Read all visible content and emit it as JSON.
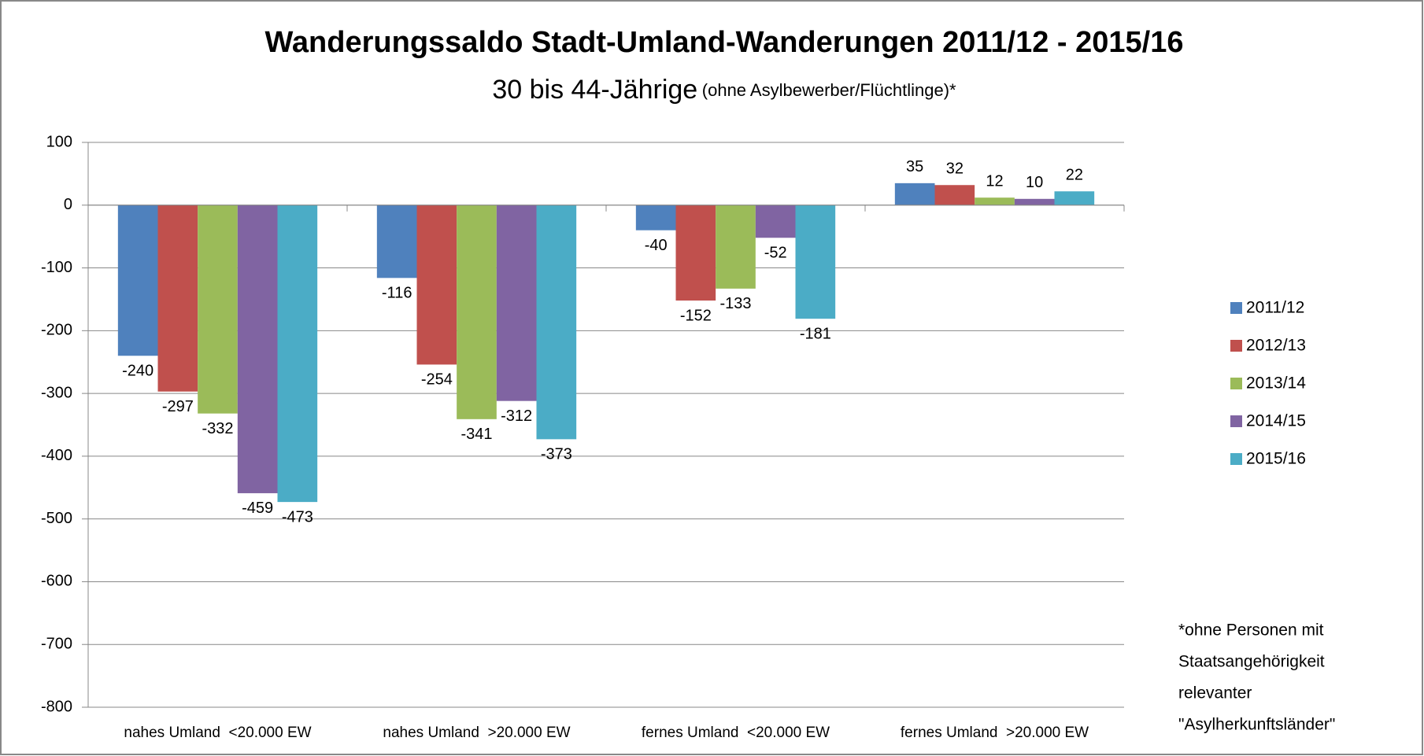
{
  "chart_data": {
    "type": "bar",
    "title": "Wanderungssaldo Stadt-Umland-Wanderungen 2011/12 - 2015/16",
    "subtitle": "30 bis 44-Jährige",
    "subtitle_note": "(ohne Asylbewerber/Flüchtlinge)*",
    "categories": [
      "nahes Umland  <20.000 EW",
      "nahes Umland  >20.000 EW",
      "fernes Umland  <20.000 EW",
      "fernes Umland  >20.000 EW"
    ],
    "series": [
      {
        "name": "2011/12",
        "color": "#4f81bd",
        "values": [
          -240,
          -116,
          -40,
          35
        ]
      },
      {
        "name": "2012/13",
        "color": "#c0504d",
        "values": [
          -297,
          -254,
          -152,
          32
        ]
      },
      {
        "name": "2013/14",
        "color": "#9bbb59",
        "values": [
          -332,
          -341,
          -133,
          12
        ]
      },
      {
        "name": "2014/15",
        "color": "#8064a2",
        "values": [
          -459,
          -312,
          -52,
          10
        ]
      },
      {
        "name": "2015/16",
        "color": "#4bacc6",
        "values": [
          -473,
          -373,
          -181,
          22
        ]
      }
    ],
    "ylim": [
      -800,
      100
    ],
    "yticks": [
      -800,
      -700,
      -600,
      -500,
      -400,
      -300,
      -200,
      -100,
      0,
      100
    ],
    "grid": true,
    "legend": "right",
    "footnote": [
      "*ohne Personen mit",
      "Staatsangehörigkeit",
      "relevanter",
      "\"Asylherkunftsländer\""
    ]
  }
}
